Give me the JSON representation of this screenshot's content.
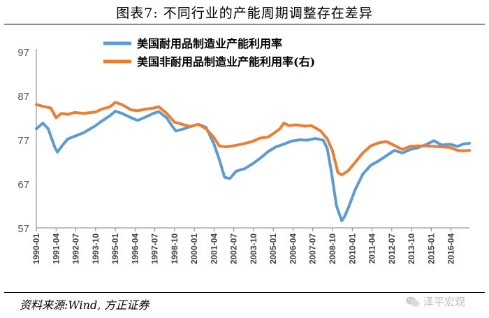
{
  "figure": {
    "title": "图表7:  不同行业的产能周期调整存在差异",
    "source": "资料来源:Wind, 方正证券",
    "watermark": "泽平宏观",
    "watermark_icon": "wechat-icon"
  },
  "chart_data": {
    "type": "line",
    "title": "",
    "xlabel": "",
    "ylabel": "",
    "ylim": [
      57,
      97
    ],
    "yticks": [
      57,
      67,
      77,
      87,
      97
    ],
    "xlim": [
      "1990-01",
      "2017-06"
    ],
    "xticks": [
      "1990-01",
      "1991-04",
      "1992-07",
      "1993-10",
      "1995-01",
      "1996-04",
      "1997-07",
      "1998-10",
      "2000-01",
      "2001-04",
      "2002-07",
      "2003-10",
      "2005-01",
      "2006-04",
      "2007-07",
      "2008-10",
      "2010-01",
      "2011-04",
      "2012-07",
      "2013-10",
      "2015-01",
      "2016-04"
    ],
    "grid": "none",
    "legend_position": "top-center",
    "series": [
      {
        "name": "美国耐用品制造业产能利用率",
        "color": "#5b9bd5",
        "x": [
          "1990-01",
          "1990-06",
          "1990-10",
          "1991-03",
          "1991-05",
          "1991-09",
          "1992-01",
          "1992-06",
          "1993-01",
          "1993-10",
          "1994-03",
          "1994-09",
          "1995-01",
          "1995-06",
          "1996-01",
          "1996-06",
          "1997-01",
          "1997-06",
          "1997-10",
          "1998-04",
          "1998-08",
          "1998-11",
          "1999-05",
          "1999-10",
          "2000-04",
          "2000-10",
          "2001-04",
          "2001-08",
          "2001-12",
          "2002-04",
          "2002-09",
          "2003-03",
          "2003-09",
          "2004-03",
          "2004-09",
          "2005-03",
          "2005-09",
          "2006-03",
          "2006-09",
          "2007-03",
          "2007-09",
          "2008-03",
          "2008-06",
          "2008-09",
          "2009-01",
          "2009-05",
          "2009-07",
          "2009-10",
          "2010-03",
          "2010-09",
          "2011-03",
          "2011-09",
          "2012-03",
          "2012-09",
          "2013-03",
          "2013-09",
          "2014-03",
          "2014-09",
          "2015-03",
          "2015-09",
          "2016-03",
          "2016-09",
          "2017-01",
          "2017-06"
        ],
        "values": [
          79.5,
          80.8,
          79.5,
          75.3,
          74.2,
          75.8,
          77.2,
          77.8,
          78.6,
          80.2,
          81.3,
          82.5,
          83.5,
          83.0,
          82.0,
          81.4,
          82.3,
          83.0,
          83.4,
          82.0,
          80.2,
          79.0,
          79.5,
          80.0,
          80.5,
          79.8,
          76.0,
          72.5,
          68.5,
          68.2,
          69.9,
          70.4,
          71.5,
          72.8,
          74.3,
          75.4,
          76.0,
          76.7,
          77.0,
          76.9,
          77.3,
          76.9,
          75.0,
          70.0,
          62.0,
          58.6,
          59.5,
          61.5,
          65.5,
          69.2,
          71.2,
          72.2,
          73.4,
          74.6,
          74.0,
          74.8,
          75.2,
          75.9,
          76.8,
          75.8,
          76.0,
          75.5,
          76.0,
          76.2
        ]
      },
      {
        "name": "美国非耐用品制造业产能利用率(右)",
        "color": "#ed7d31",
        "x": [
          "1990-01",
          "1990-06",
          "1990-12",
          "1991-04",
          "1991-08",
          "1992-01",
          "1992-06",
          "1993-01",
          "1993-10",
          "1994-03",
          "1994-09",
          "1995-01",
          "1995-06",
          "1996-01",
          "1996-06",
          "1997-01",
          "1997-06",
          "1997-10",
          "1998-04",
          "1998-10",
          "1999-04",
          "1999-10",
          "2000-04",
          "2000-10",
          "2001-04",
          "2001-08",
          "2002-01",
          "2002-06",
          "2003-01",
          "2003-09",
          "2004-03",
          "2004-09",
          "2005-01",
          "2005-06",
          "2005-09",
          "2006-01",
          "2006-06",
          "2007-01",
          "2007-06",
          "2008-01",
          "2008-06",
          "2008-10",
          "2009-02",
          "2009-05",
          "2009-10",
          "2010-03",
          "2010-09",
          "2011-03",
          "2011-09",
          "2012-03",
          "2012-09",
          "2013-03",
          "2013-09",
          "2014-03",
          "2014-09",
          "2015-03",
          "2015-09",
          "2016-03",
          "2016-09",
          "2017-01",
          "2017-06"
        ],
        "values": [
          85.0,
          84.6,
          84.2,
          82.0,
          83.0,
          82.8,
          83.2,
          83.0,
          83.3,
          84.0,
          84.5,
          85.5,
          85.0,
          83.8,
          83.6,
          84.0,
          84.2,
          84.5,
          83.0,
          81.0,
          80.5,
          80.0,
          80.5,
          79.5,
          77.5,
          75.6,
          75.4,
          75.6,
          76.0,
          76.6,
          77.4,
          77.6,
          78.4,
          79.5,
          80.8,
          80.2,
          80.4,
          80.1,
          80.2,
          79.0,
          77.2,
          74.5,
          69.6,
          69.0,
          70.0,
          71.8,
          74.0,
          75.6,
          76.3,
          76.6,
          75.7,
          74.8,
          75.5,
          75.6,
          75.6,
          75.5,
          75.4,
          75.3,
          74.6,
          74.5,
          74.6
        ]
      }
    ]
  }
}
